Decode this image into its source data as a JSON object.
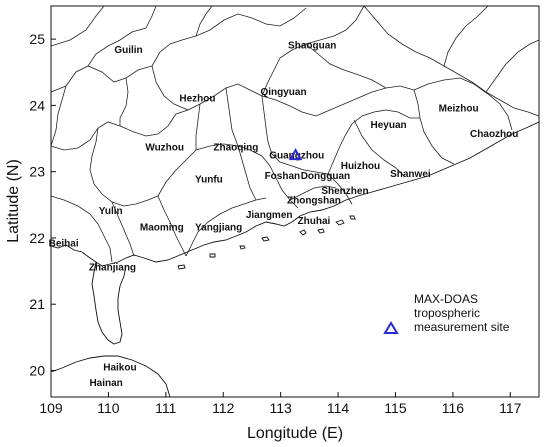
{
  "map": {
    "x_axis": {
      "title": "Longitude (E)",
      "range": [
        109,
        117.5
      ],
      "ticks": [
        "109",
        "110",
        "111",
        "112",
        "113",
        "114",
        "115",
        "116",
        "117"
      ]
    },
    "y_axis": {
      "title": "Latitude (N)",
      "range": [
        19.6,
        25.5
      ],
      "ticks": [
        "20",
        "21",
        "22",
        "23",
        "24",
        "25"
      ]
    },
    "cities": [
      {
        "name": "Guilin",
        "lon": 110.35,
        "lat": 24.85
      },
      {
        "name": "Shaoguan",
        "lon": 113.55,
        "lat": 24.92
      },
      {
        "name": "Hezhou",
        "lon": 111.55,
        "lat": 24.12
      },
      {
        "name": "Qingyuan",
        "lon": 113.05,
        "lat": 24.22
      },
      {
        "name": "Heyuan",
        "lon": 114.88,
        "lat": 23.72
      },
      {
        "name": "Meizhou",
        "lon": 116.1,
        "lat": 23.97
      },
      {
        "name": "Chaozhou",
        "lon": 116.72,
        "lat": 23.58
      },
      {
        "name": "Wuzhou",
        "lon": 110.98,
        "lat": 23.38
      },
      {
        "name": "Zhaoqing",
        "lon": 112.22,
        "lat": 23.38
      },
      {
        "name": "Guangzhou",
        "lon": 113.28,
        "lat": 23.26
      },
      {
        "name": "Huizhou",
        "lon": 114.39,
        "lat": 23.1
      },
      {
        "name": "Foshan",
        "lon": 113.03,
        "lat": 22.95
      },
      {
        "name": "Dongguan",
        "lon": 113.78,
        "lat": 22.95
      },
      {
        "name": "Yunfu",
        "lon": 111.75,
        "lat": 22.9
      },
      {
        "name": "Shanwei",
        "lon": 115.26,
        "lat": 22.98
      },
      {
        "name": "Shenzhen",
        "lon": 114.12,
        "lat": 22.72
      },
      {
        "name": "Zhongshan",
        "lon": 113.58,
        "lat": 22.58
      },
      {
        "name": "Yulin",
        "lon": 110.04,
        "lat": 22.42
      },
      {
        "name": "Jiangmen",
        "lon": 112.8,
        "lat": 22.36
      },
      {
        "name": "Zhuhai",
        "lon": 113.58,
        "lat": 22.27
      },
      {
        "name": "Maoming",
        "lon": 110.93,
        "lat": 22.17
      },
      {
        "name": "Yangjiang",
        "lon": 111.92,
        "lat": 22.17
      },
      {
        "name": "Beihai",
        "lon": 109.22,
        "lat": 21.93
      },
      {
        "name": "Zhanjiang",
        "lon": 110.07,
        "lat": 21.57
      },
      {
        "name": "Haikou",
        "lon": 110.2,
        "lat": 20.06
      },
      {
        "name": "Hainan",
        "lon": 109.96,
        "lat": 19.83
      }
    ],
    "site": {
      "lon": 113.26,
      "lat": 23.25,
      "color": "#2a2ad0"
    },
    "legend": {
      "lines": [
        "MAX-DOAS",
        "tropospheric",
        "measurement site"
      ],
      "marker_color": "#2a2ad0",
      "placement": "lower-right"
    }
  }
}
